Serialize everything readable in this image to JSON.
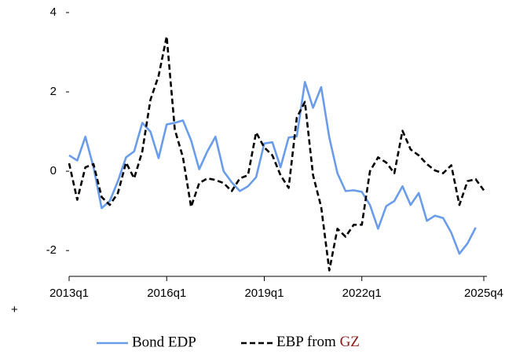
{
  "chart_data": {
    "type": "line",
    "categories": [
      "2013q1",
      null,
      null,
      null,
      null,
      null,
      null,
      null,
      null,
      null,
      null,
      null,
      "2016q1",
      null,
      null,
      null,
      null,
      null,
      null,
      null,
      null,
      null,
      null,
      null,
      "2019q1",
      null,
      null,
      null,
      null,
      null,
      null,
      null,
      null,
      null,
      null,
      null,
      "2022q1",
      null,
      null,
      null,
      null,
      null,
      null,
      null,
      null,
      null,
      null,
      null,
      null,
      null,
      null,
      "2025q4"
    ],
    "series": [
      {
        "name": "Bond EDP",
        "color": "#6a9cec",
        "dashed": false,
        "values": [
          0.4,
          0.27,
          0.87,
          0.1,
          -0.93,
          -0.75,
          -0.25,
          0.35,
          0.5,
          1.22,
          1.0,
          0.33,
          1.18,
          1.22,
          1.28,
          0.78,
          0.05,
          0.5,
          0.87,
          0.0,
          -0.28,
          -0.5,
          -0.38,
          -0.15,
          0.7,
          0.73,
          0.1,
          0.85,
          0.88,
          2.25,
          1.6,
          2.12,
          0.85,
          -0.05,
          -0.5,
          -0.48,
          -0.52,
          -0.85,
          -1.45,
          -0.88,
          -0.75,
          -0.38,
          -0.85,
          -0.55,
          -1.25,
          -1.12,
          -1.18,
          -1.55,
          -2.08,
          -1.82,
          -1.42,
          null
        ]
      },
      {
        "name": "EBP from GZ",
        "color": "#000000",
        "dashed": true,
        "legend_last_word_color": "#8b1a1a",
        "values": [
          0.2,
          -0.72,
          0.1,
          0.18,
          -0.65,
          -0.85,
          -0.55,
          0.22,
          -0.18,
          0.5,
          1.8,
          2.4,
          3.4,
          1.05,
          0.35,
          -0.9,
          -0.3,
          -0.18,
          -0.22,
          -0.3,
          -0.5,
          -0.18,
          -0.1,
          0.98,
          0.6,
          0.4,
          -0.1,
          -0.42,
          1.35,
          1.75,
          -0.1,
          -0.9,
          -2.5,
          -1.45,
          -1.65,
          -1.35,
          -1.35,
          0.0,
          0.35,
          0.22,
          -0.05,
          1.02,
          0.55,
          0.4,
          0.18,
          0.02,
          -0.05,
          0.15,
          -0.85,
          -0.25,
          -0.2,
          -0.48
        ]
      }
    ],
    "ylim": [
      -2.65,
      4
    ],
    "yticks": [
      -2,
      0,
      2,
      4
    ],
    "annotations": [
      "+"
    ]
  }
}
